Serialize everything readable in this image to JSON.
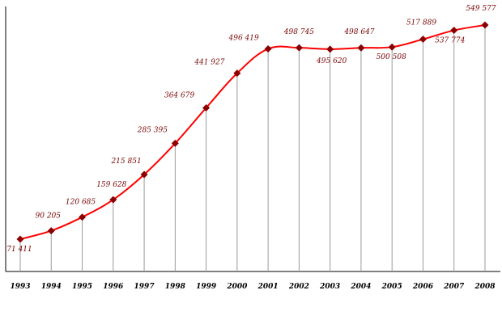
{
  "chart_data": {
    "type": "line",
    "title": "",
    "xlabel": "",
    "ylabel": "",
    "categories": [
      "1993",
      "1994",
      "1995",
      "1996",
      "1997",
      "1998",
      "1999",
      "2000",
      "2001",
      "2002",
      "2003",
      "2004",
      "2005",
      "2006",
      "2007",
      "2008"
    ],
    "series": [
      {
        "values": [
          71411,
          90205,
          120685,
          159628,
          215851,
          285395,
          364679,
          441927,
          496419,
          498745,
          495620,
          498647,
          500508,
          517889,
          537774,
          549577
        ],
        "color": "#ff0000",
        "marker_color": "#8b0000"
      }
    ],
    "data_labels": [
      "71 411",
      "90 205",
      "120 685",
      "159 628",
      "215 851",
      "285 395",
      "364 679",
      "441 927",
      "496 419",
      "498 745",
      "495 620",
      "498 647",
      "500 508",
      "517 889",
      "537 774",
      "549 577"
    ],
    "ylim": [
      0,
      560000
    ],
    "grid": "vertical drop lines at each point",
    "legend": "none"
  }
}
